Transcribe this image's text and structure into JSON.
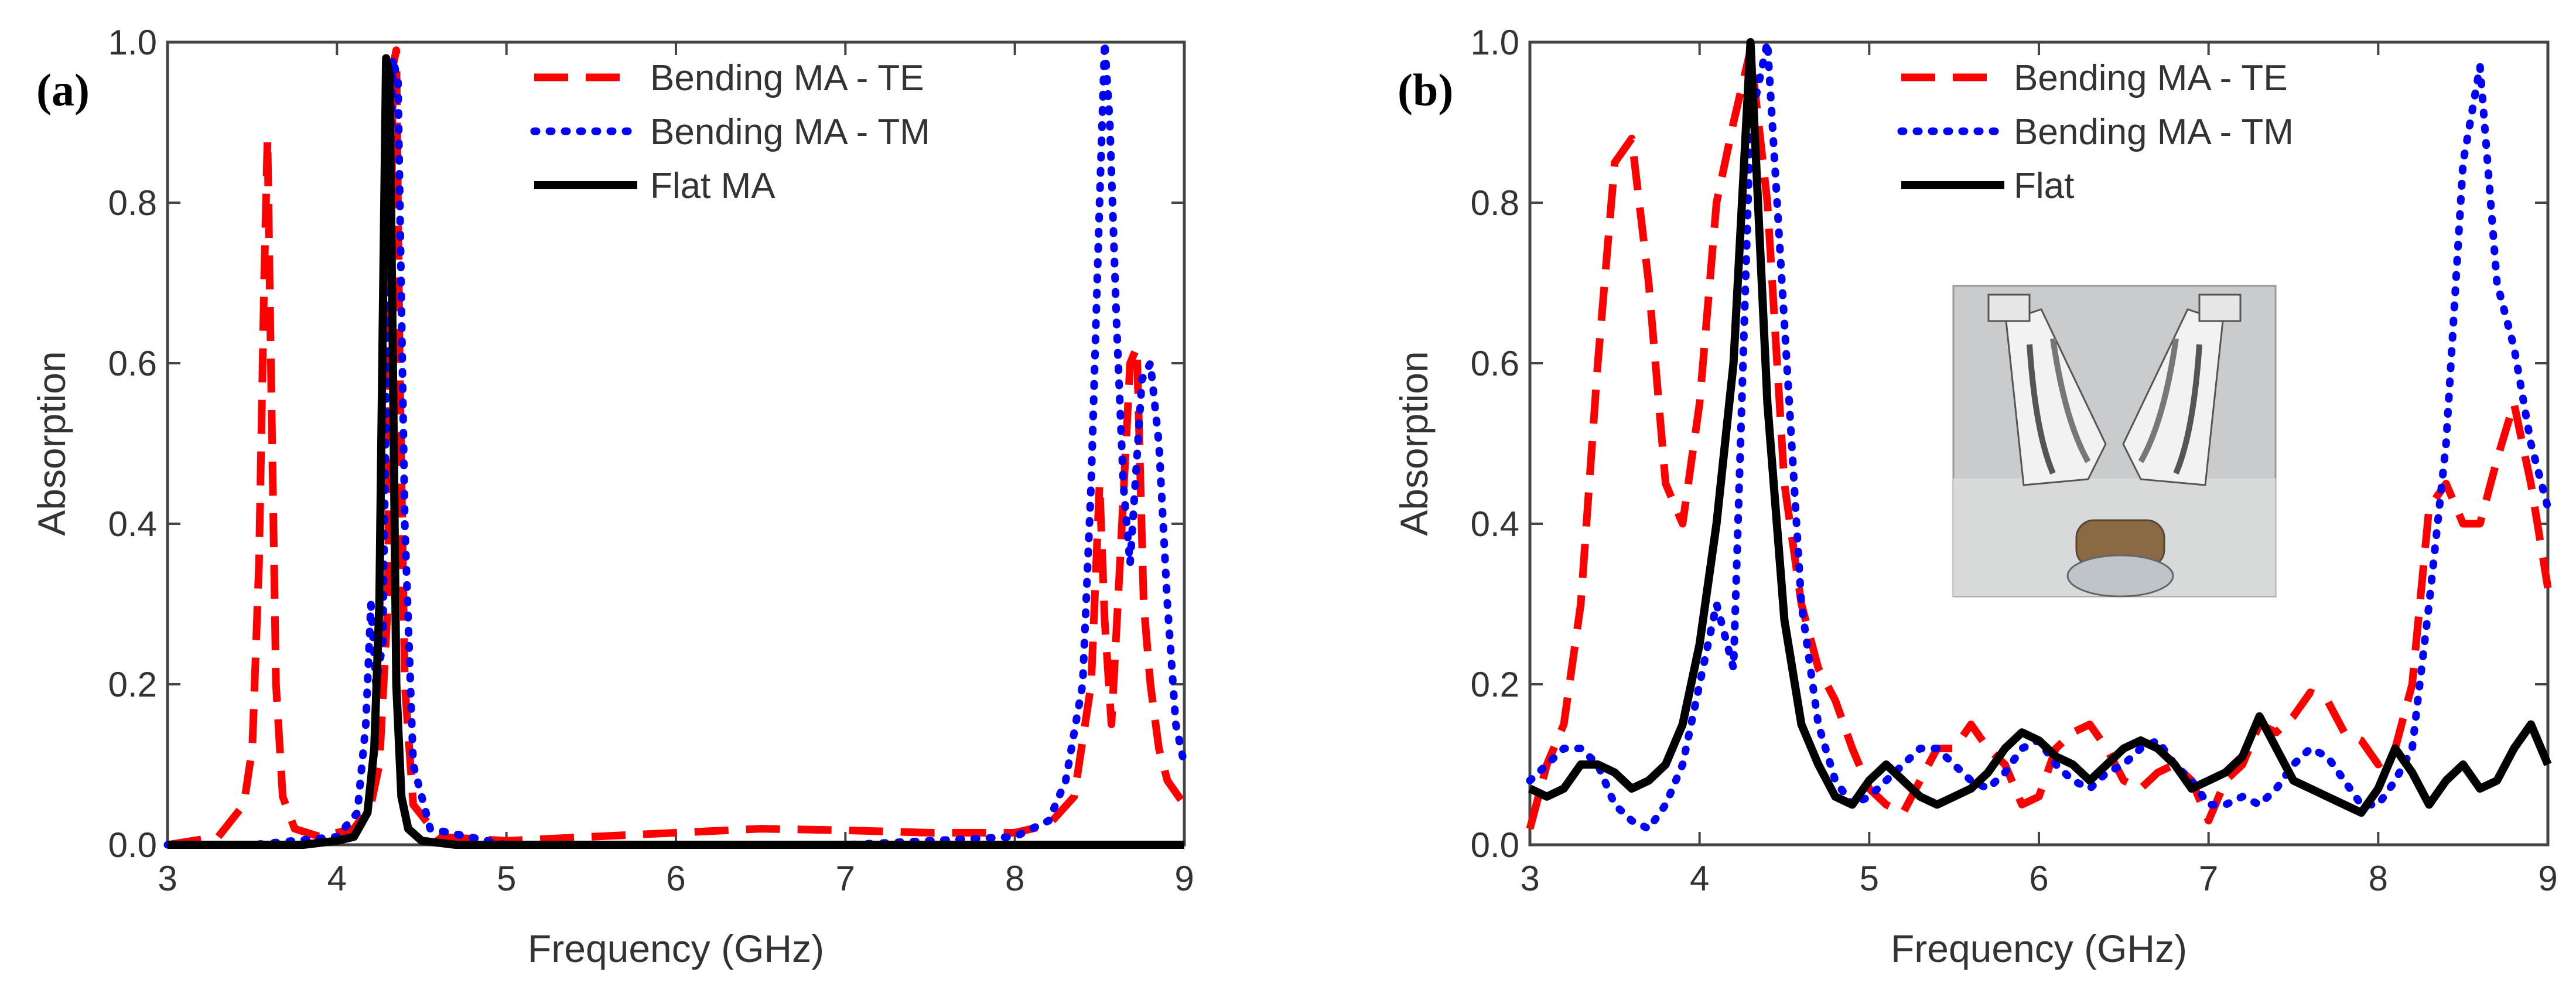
{
  "chart_data": [
    {
      "type": "line",
      "panel_label": "(a)",
      "xlabel": "Frequency (GHz)",
      "ylabel": "Absorption",
      "xlim": [
        3,
        9
      ],
      "ylim": [
        0,
        1.0
      ],
      "x_ticks": [
        "3",
        "4",
        "5",
        "6",
        "7",
        "8",
        "9"
      ],
      "y_ticks": [
        "0.0",
        "0.2",
        "0.4",
        "0.6",
        "0.8",
        "1.0"
      ],
      "legend_position": "top-center",
      "series": [
        {
          "name": "Bending MA - TE",
          "color": "#ff0000",
          "style": "dashed",
          "x": [
            3.0,
            3.3,
            3.45,
            3.5,
            3.54,
            3.57,
            3.59,
            3.61,
            3.64,
            3.68,
            3.75,
            3.9,
            4.1,
            4.2,
            4.25,
            4.3,
            4.33,
            4.35,
            4.37,
            4.4,
            4.45,
            4.6,
            5.0,
            5.5,
            6.0,
            6.5,
            7.0,
            7.5,
            8.0,
            8.2,
            8.35,
            8.45,
            8.5,
            8.53,
            8.57,
            8.62,
            8.68,
            8.72,
            8.76,
            8.8,
            8.85,
            8.9,
            9.0
          ],
          "y": [
            0.0,
            0.01,
            0.05,
            0.12,
            0.35,
            0.7,
            0.88,
            0.6,
            0.2,
            0.06,
            0.02,
            0.01,
            0.02,
            0.05,
            0.1,
            0.3,
            0.97,
            0.99,
            0.6,
            0.2,
            0.05,
            0.01,
            0.005,
            0.01,
            0.015,
            0.02,
            0.018,
            0.015,
            0.015,
            0.025,
            0.06,
            0.2,
            0.45,
            0.28,
            0.15,
            0.35,
            0.6,
            0.62,
            0.3,
            0.2,
            0.12,
            0.08,
            0.05
          ]
        },
        {
          "name": "Bending MA - TM",
          "color": "#0000ff",
          "style": "dotted",
          "x": [
            3.0,
            3.5,
            4.0,
            4.12,
            4.17,
            4.2,
            4.23,
            4.27,
            4.3,
            4.33,
            4.36,
            4.4,
            4.45,
            4.55,
            5.0,
            6.0,
            7.0,
            8.0,
            8.2,
            8.3,
            8.4,
            8.45,
            8.5,
            8.53,
            8.56,
            8.6,
            8.64,
            8.68,
            8.75,
            8.8,
            8.85,
            8.9,
            8.95,
            9.0
          ],
          "y": [
            0.0,
            0.0,
            0.01,
            0.04,
            0.15,
            0.3,
            0.2,
            0.25,
            0.7,
            0.98,
            0.95,
            0.4,
            0.1,
            0.02,
            0.0,
            0.0,
            0.0,
            0.01,
            0.03,
            0.08,
            0.2,
            0.45,
            0.8,
            1.0,
            0.9,
            0.65,
            0.45,
            0.35,
            0.58,
            0.6,
            0.5,
            0.3,
            0.15,
            0.1
          ]
        },
        {
          "name": "Flat MA",
          "color": "#000000",
          "style": "solid",
          "x": [
            3.0,
            3.8,
            4.0,
            4.1,
            4.18,
            4.22,
            4.25,
            4.27,
            4.29,
            4.31,
            4.33,
            4.35,
            4.38,
            4.42,
            4.5,
            4.7,
            5.0,
            9.0
          ],
          "y": [
            0.0,
            0.0,
            0.005,
            0.01,
            0.04,
            0.12,
            0.3,
            0.65,
            0.98,
            0.96,
            0.6,
            0.2,
            0.06,
            0.02,
            0.005,
            0.0,
            0.0,
            0.0
          ]
        }
      ]
    },
    {
      "type": "line",
      "panel_label": "(b)",
      "xlabel": "Frequency (GHz)",
      "ylabel": "Absorption",
      "xlim": [
        3,
        9
      ],
      "ylim": [
        0,
        1.0
      ],
      "x_ticks": [
        "3",
        "4",
        "5",
        "6",
        "7",
        "8",
        "9"
      ],
      "y_ticks": [
        "0.0",
        "0.2",
        "0.4",
        "0.6",
        "0.8",
        "1.0"
      ],
      "legend_position": "top-right",
      "inset": "photo of bending absorber samples",
      "series": [
        {
          "name": "Bending MA - TE",
          "color": "#ff0000",
          "style": "dashed",
          "x": [
            3.0,
            3.1,
            3.2,
            3.3,
            3.4,
            3.5,
            3.6,
            3.7,
            3.8,
            3.9,
            4.0,
            4.1,
            4.2,
            4.3,
            4.4,
            4.5,
            4.6,
            4.7,
            4.8,
            4.9,
            5.0,
            5.1,
            5.2,
            5.3,
            5.4,
            5.5,
            5.6,
            5.7,
            5.8,
            5.9,
            6.0,
            6.1,
            6.2,
            6.3,
            6.4,
            6.5,
            6.6,
            6.7,
            6.8,
            6.9,
            7.0,
            7.1,
            7.2,
            7.3,
            7.4,
            7.5,
            7.6,
            7.7,
            7.8,
            7.9,
            8.0,
            8.1,
            8.2,
            8.3,
            8.4,
            8.5,
            8.6,
            8.7,
            8.8,
            8.9,
            9.0
          ],
          "y": [
            0.02,
            0.1,
            0.15,
            0.3,
            0.6,
            0.85,
            0.88,
            0.7,
            0.45,
            0.4,
            0.55,
            0.8,
            0.9,
            0.99,
            0.8,
            0.45,
            0.3,
            0.22,
            0.18,
            0.12,
            0.07,
            0.05,
            0.04,
            0.08,
            0.12,
            0.12,
            0.15,
            0.12,
            0.1,
            0.05,
            0.06,
            0.12,
            0.14,
            0.15,
            0.12,
            0.08,
            0.07,
            0.09,
            0.1,
            0.08,
            0.03,
            0.08,
            0.1,
            0.15,
            0.14,
            0.16,
            0.19,
            0.18,
            0.14,
            0.13,
            0.1,
            0.12,
            0.2,
            0.42,
            0.45,
            0.4,
            0.4,
            0.48,
            0.55,
            0.45,
            0.32
          ]
        },
        {
          "name": "Bending MA - TM",
          "color": "#0000ff",
          "style": "dotted",
          "x": [
            3.0,
            3.1,
            3.2,
            3.3,
            3.4,
            3.5,
            3.6,
            3.7,
            3.8,
            3.9,
            4.0,
            4.1,
            4.2,
            4.3,
            4.4,
            4.5,
            4.6,
            4.7,
            4.8,
            4.9,
            5.0,
            5.1,
            5.2,
            5.3,
            5.4,
            5.5,
            5.6,
            5.7,
            5.8,
            5.9,
            6.0,
            6.1,
            6.2,
            6.3,
            6.4,
            6.5,
            6.6,
            6.7,
            6.8,
            6.9,
            7.0,
            7.1,
            7.2,
            7.3,
            7.4,
            7.5,
            7.6,
            7.7,
            7.8,
            7.9,
            8.0,
            8.1,
            8.2,
            8.3,
            8.4,
            8.5,
            8.6,
            8.7,
            8.8,
            8.9,
            9.0
          ],
          "y": [
            0.08,
            0.1,
            0.12,
            0.12,
            0.1,
            0.05,
            0.03,
            0.02,
            0.05,
            0.1,
            0.2,
            0.3,
            0.22,
            0.9,
            1.0,
            0.65,
            0.3,
            0.15,
            0.08,
            0.05,
            0.06,
            0.08,
            0.1,
            0.12,
            0.12,
            0.1,
            0.08,
            0.07,
            0.09,
            0.12,
            0.13,
            0.1,
            0.08,
            0.07,
            0.09,
            0.1,
            0.12,
            0.13,
            0.1,
            0.08,
            0.05,
            0.05,
            0.06,
            0.05,
            0.07,
            0.1,
            0.12,
            0.11,
            0.08,
            0.05,
            0.05,
            0.08,
            0.12,
            0.3,
            0.5,
            0.85,
            0.97,
            0.7,
            0.62,
            0.5,
            0.42
          ]
        },
        {
          "name": "Flat",
          "color": "#000000",
          "style": "solid",
          "x": [
            3.0,
            3.1,
            3.2,
            3.3,
            3.4,
            3.5,
            3.6,
            3.7,
            3.8,
            3.9,
            4.0,
            4.1,
            4.2,
            4.3,
            4.4,
            4.5,
            4.6,
            4.7,
            4.8,
            4.9,
            5.0,
            5.1,
            5.2,
            5.3,
            5.4,
            5.5,
            5.6,
            5.7,
            5.8,
            5.9,
            6.0,
            6.1,
            6.2,
            6.3,
            6.4,
            6.5,
            6.6,
            6.7,
            6.8,
            6.9,
            7.0,
            7.1,
            7.2,
            7.3,
            7.4,
            7.5,
            7.6,
            7.7,
            7.8,
            7.9,
            8.0,
            8.1,
            8.2,
            8.3,
            8.4,
            8.5,
            8.6,
            8.7,
            8.8,
            8.9,
            9.0
          ],
          "y": [
            0.07,
            0.06,
            0.07,
            0.1,
            0.1,
            0.09,
            0.07,
            0.08,
            0.1,
            0.15,
            0.25,
            0.4,
            0.6,
            1.0,
            0.55,
            0.28,
            0.15,
            0.1,
            0.06,
            0.05,
            0.08,
            0.1,
            0.08,
            0.06,
            0.05,
            0.06,
            0.07,
            0.09,
            0.12,
            0.14,
            0.13,
            0.11,
            0.1,
            0.08,
            0.1,
            0.12,
            0.13,
            0.12,
            0.1,
            0.07,
            0.08,
            0.09,
            0.11,
            0.16,
            0.12,
            0.08,
            0.07,
            0.06,
            0.05,
            0.04,
            0.07,
            0.12,
            0.09,
            0.05,
            0.08,
            0.1,
            0.07,
            0.08,
            0.12,
            0.15,
            0.1
          ]
        }
      ]
    }
  ]
}
